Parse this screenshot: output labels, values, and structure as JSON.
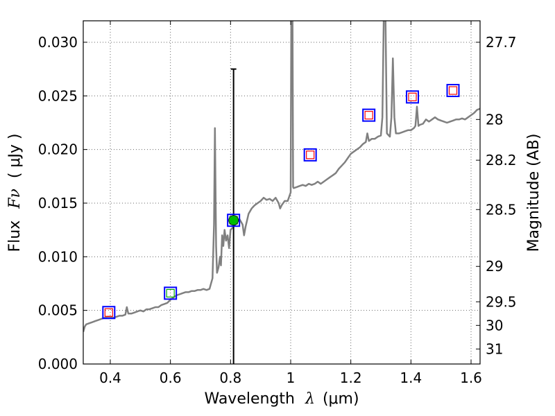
{
  "chart_data": {
    "type": "line",
    "xlabel_prefix": "Wavelength",
    "xlabel_symbol": "λ",
    "xlabel_unit": "(μm)",
    "ylabel_prefix": "Flux",
    "ylabel_symbol": "Fν",
    "ylabel_unit": "( μJy )",
    "y2label": "Magnitude (AB)",
    "xlim": [
      0.31,
      1.63
    ],
    "ylim": [
      0.0,
      0.032
    ],
    "grid": true,
    "x_ticks": [
      0.4,
      0.6,
      0.8,
      1.0,
      1.2,
      1.4,
      1.6
    ],
    "x_tick_labels": [
      "0.4",
      "0.6",
      "0.8",
      "1",
      "1.2",
      "1.4",
      "1.6"
    ],
    "y_ticks": [
      0.0,
      0.005,
      0.01,
      0.015,
      0.02,
      0.025,
      0.03
    ],
    "y_tick_labels": [
      "0.000",
      "0.005",
      "0.010",
      "0.015",
      "0.020",
      "0.025",
      "0.030"
    ],
    "y2_ticks": [
      {
        "label": "27.7",
        "flux": 0.03
      },
      {
        "label": "28",
        "flux": 0.0228
      },
      {
        "label": "28.2",
        "flux": 0.019
      },
      {
        "label": "28.5",
        "flux": 0.0144
      },
      {
        "label": "29",
        "flux": 0.0091
      },
      {
        "label": "29.5",
        "flux": 0.0058
      },
      {
        "label": "30",
        "flux": 0.0036
      },
      {
        "label": "31",
        "flux": 0.0014
      }
    ],
    "colors": {
      "spectrum": "#808080",
      "box_outer": "#0000ff",
      "box_inner_red": "#ff0000",
      "box_inner_green": "#00aa00",
      "detection": "#00bb00",
      "errorbar": "#000000",
      "grid": "#666666"
    },
    "spectrum": [
      [
        0.31,
        0.003
      ],
      [
        0.315,
        0.0035
      ],
      [
        0.32,
        0.0037
      ],
      [
        0.33,
        0.0038
      ],
      [
        0.34,
        0.0039
      ],
      [
        0.35,
        0.004
      ],
      [
        0.36,
        0.0041
      ],
      [
        0.37,
        0.0042
      ],
      [
        0.38,
        0.0043
      ],
      [
        0.39,
        0.0044
      ],
      [
        0.4,
        0.0044
      ],
      [
        0.41,
        0.0043
      ],
      [
        0.42,
        0.0044
      ],
      [
        0.43,
        0.0045
      ],
      [
        0.44,
        0.0045
      ],
      [
        0.45,
        0.0046
      ],
      [
        0.455,
        0.0053
      ],
      [
        0.46,
        0.0047
      ],
      [
        0.47,
        0.0047
      ],
      [
        0.48,
        0.0048
      ],
      [
        0.49,
        0.0049
      ],
      [
        0.5,
        0.005
      ],
      [
        0.51,
        0.0049
      ],
      [
        0.52,
        0.0051
      ],
      [
        0.53,
        0.0051
      ],
      [
        0.54,
        0.0052
      ],
      [
        0.55,
        0.0053
      ],
      [
        0.56,
        0.0053
      ],
      [
        0.57,
        0.0055
      ],
      [
        0.58,
        0.0056
      ],
      [
        0.59,
        0.0057
      ],
      [
        0.6,
        0.006
      ],
      [
        0.61,
        0.0062
      ],
      [
        0.62,
        0.0064
      ],
      [
        0.63,
        0.0065
      ],
      [
        0.64,
        0.0066
      ],
      [
        0.65,
        0.0067
      ],
      [
        0.66,
        0.0067
      ],
      [
        0.67,
        0.0068
      ],
      [
        0.68,
        0.0068
      ],
      [
        0.69,
        0.0069
      ],
      [
        0.7,
        0.0069
      ],
      [
        0.71,
        0.007
      ],
      [
        0.72,
        0.0069
      ],
      [
        0.73,
        0.007
      ],
      [
        0.74,
        0.008
      ],
      [
        0.745,
        0.013
      ],
      [
        0.748,
        0.022
      ],
      [
        0.752,
        0.011
      ],
      [
        0.755,
        0.0085
      ],
      [
        0.76,
        0.009
      ],
      [
        0.765,
        0.01
      ],
      [
        0.768,
        0.0092
      ],
      [
        0.772,
        0.012
      ],
      [
        0.776,
        0.011
      ],
      [
        0.78,
        0.0125
      ],
      [
        0.785,
        0.0115
      ],
      [
        0.79,
        0.012
      ],
      [
        0.795,
        0.0108
      ],
      [
        0.8,
        0.0125
      ],
      [
        0.81,
        0.0128
      ],
      [
        0.82,
        0.0132
      ],
      [
        0.83,
        0.0135
      ],
      [
        0.84,
        0.013
      ],
      [
        0.845,
        0.012
      ],
      [
        0.85,
        0.0128
      ],
      [
        0.86,
        0.014
      ],
      [
        0.87,
        0.0145
      ],
      [
        0.88,
        0.0148
      ],
      [
        0.89,
        0.015
      ],
      [
        0.9,
        0.0152
      ],
      [
        0.91,
        0.0155
      ],
      [
        0.92,
        0.0153
      ],
      [
        0.93,
        0.0154
      ],
      [
        0.94,
        0.0152
      ],
      [
        0.95,
        0.0155
      ],
      [
        0.96,
        0.015
      ],
      [
        0.965,
        0.0145
      ],
      [
        0.97,
        0.0148
      ],
      [
        0.98,
        0.0152
      ],
      [
        0.99,
        0.0152
      ],
      [
        1.0,
        0.016
      ],
      [
        1.002,
        0.033
      ],
      [
        1.006,
        0.033
      ],
      [
        1.008,
        0.0165
      ],
      [
        1.01,
        0.0164
      ],
      [
        1.02,
        0.0165
      ],
      [
        1.03,
        0.0166
      ],
      [
        1.04,
        0.0167
      ],
      [
        1.05,
        0.0166
      ],
      [
        1.06,
        0.0168
      ],
      [
        1.07,
        0.0167
      ],
      [
        1.08,
        0.0168
      ],
      [
        1.09,
        0.017
      ],
      [
        1.1,
        0.0168
      ],
      [
        1.11,
        0.017
      ],
      [
        1.12,
        0.0172
      ],
      [
        1.13,
        0.0174
      ],
      [
        1.14,
        0.0176
      ],
      [
        1.15,
        0.0178
      ],
      [
        1.16,
        0.0182
      ],
      [
        1.17,
        0.0185
      ],
      [
        1.18,
        0.0188
      ],
      [
        1.19,
        0.0192
      ],
      [
        1.2,
        0.0196
      ],
      [
        1.21,
        0.0198
      ],
      [
        1.22,
        0.02
      ],
      [
        1.23,
        0.0202
      ],
      [
        1.24,
        0.0205
      ],
      [
        1.25,
        0.0207
      ],
      [
        1.255,
        0.0215
      ],
      [
        1.26,
        0.0208
      ],
      [
        1.27,
        0.021
      ],
      [
        1.28,
        0.021
      ],
      [
        1.29,
        0.0212
      ],
      [
        1.3,
        0.0213
      ],
      [
        1.305,
        0.023
      ],
      [
        1.31,
        0.033
      ],
      [
        1.315,
        0.033
      ],
      [
        1.32,
        0.0215
      ],
      [
        1.33,
        0.0212
      ],
      [
        1.335,
        0.023
      ],
      [
        1.34,
        0.0285
      ],
      [
        1.345,
        0.023
      ],
      [
        1.35,
        0.0215
      ],
      [
        1.36,
        0.0215
      ],
      [
        1.37,
        0.0216
      ],
      [
        1.38,
        0.0217
      ],
      [
        1.39,
        0.0218
      ],
      [
        1.4,
        0.0218
      ],
      [
        1.41,
        0.022
      ],
      [
        1.415,
        0.0222
      ],
      [
        1.42,
        0.024
      ],
      [
        1.425,
        0.0222
      ],
      [
        1.43,
        0.0223
      ],
      [
        1.44,
        0.0224
      ],
      [
        1.45,
        0.0228
      ],
      [
        1.46,
        0.0226
      ],
      [
        1.47,
        0.0228
      ],
      [
        1.48,
        0.023
      ],
      [
        1.49,
        0.0228
      ],
      [
        1.5,
        0.0227
      ],
      [
        1.51,
        0.0226
      ],
      [
        1.52,
        0.0225
      ],
      [
        1.53,
        0.0226
      ],
      [
        1.54,
        0.0227
      ],
      [
        1.55,
        0.0228
      ],
      [
        1.56,
        0.0228
      ],
      [
        1.57,
        0.0229
      ],
      [
        1.58,
        0.0228
      ],
      [
        1.59,
        0.023
      ],
      [
        1.6,
        0.0232
      ],
      [
        1.61,
        0.0234
      ],
      [
        1.62,
        0.0237
      ],
      [
        1.63,
        0.0238
      ]
    ],
    "photometry": [
      {
        "x": 0.395,
        "y": 0.0048,
        "inner": "red"
      },
      {
        "x": 0.6,
        "y": 0.0066,
        "inner": "green"
      },
      {
        "x": 0.81,
        "y": 0.0134,
        "inner": "green",
        "detection": true,
        "err_low": 0.0,
        "err_high": 0.0275
      },
      {
        "x": 1.065,
        "y": 0.0195,
        "inner": "red"
      },
      {
        "x": 1.26,
        "y": 0.0232,
        "inner": "red"
      },
      {
        "x": 1.405,
        "y": 0.0249,
        "inner": "red"
      },
      {
        "x": 1.54,
        "y": 0.0255,
        "inner": "red"
      }
    ]
  }
}
